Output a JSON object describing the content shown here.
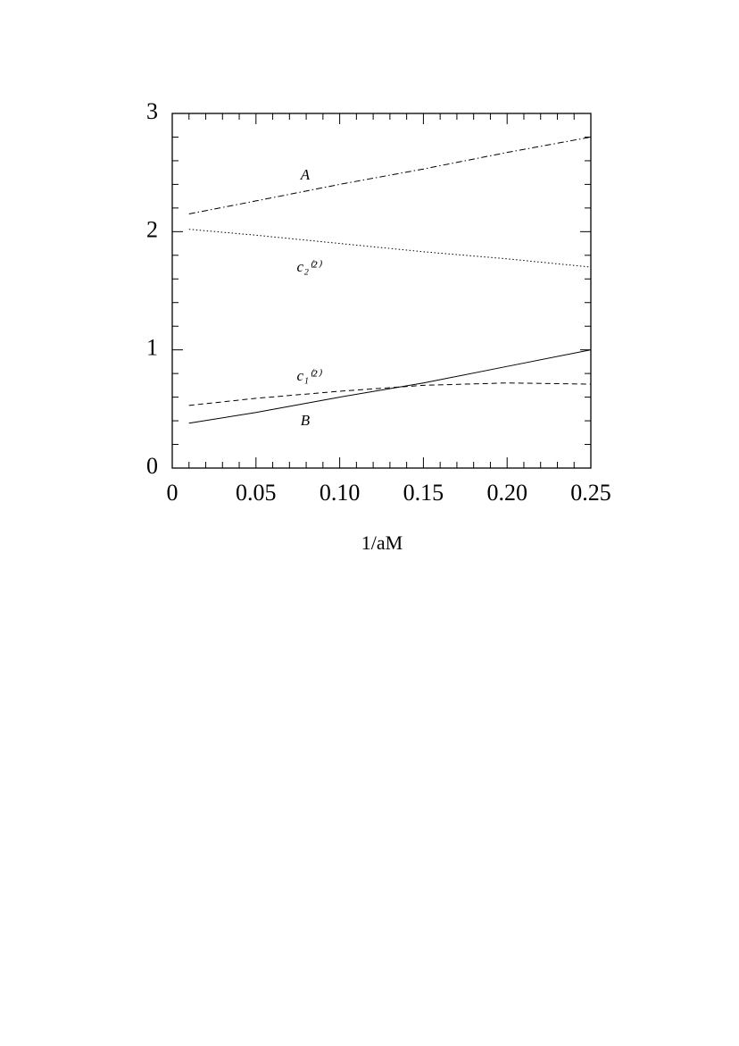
{
  "chart_data": {
    "type": "line",
    "x_label": "1/aM",
    "x": [
      0.01,
      0.05,
      0.1,
      0.15,
      0.2,
      0.25
    ],
    "series": [
      {
        "name": "A",
        "color": "#000000",
        "style": "dashdot",
        "values": [
          2.15,
          2.26,
          2.4,
          2.53,
          2.67,
          2.8
        ]
      },
      {
        "name": "c₂⁽²⁾",
        "color": "#000000",
        "style": "dotted",
        "values": [
          2.02,
          1.97,
          1.9,
          1.83,
          1.77,
          1.7
        ]
      },
      {
        "name": "c₁⁽²⁾",
        "color": "#000000",
        "style": "dashed",
        "values": [
          0.53,
          0.59,
          0.65,
          0.7,
          0.72,
          0.71
        ]
      },
      {
        "name": "B",
        "color": "#000000",
        "style": "solid",
        "values": [
          0.38,
          0.47,
          0.6,
          0.72,
          0.86,
          1.0
        ]
      }
    ],
    "xlim": [
      0,
      0.25
    ],
    "ylim": [
      0,
      3
    ],
    "xticks": [
      0,
      0.05,
      {
        "value": 0.1,
        "label": "0.10"
      },
      0.15,
      {
        "value": 0.2,
        "label": "0.20"
      },
      0.25
    ],
    "yticks": [
      0,
      1,
      2,
      3
    ],
    "xminorticks": [
      0.01,
      0.02,
      0.03,
      0.04,
      0.06,
      0.07,
      0.08,
      0.09,
      0.11,
      0.12,
      0.13,
      0.14,
      0.16,
      0.17,
      0.18,
      0.19,
      0.21,
      0.22,
      0.23,
      0.24
    ],
    "yminorticks": [
      0.2,
      0.4,
      0.6,
      0.8,
      1.2,
      1.4,
      1.6,
      1.8,
      2.2,
      2.4,
      2.6,
      2.8
    ],
    "grid": false
  }
}
